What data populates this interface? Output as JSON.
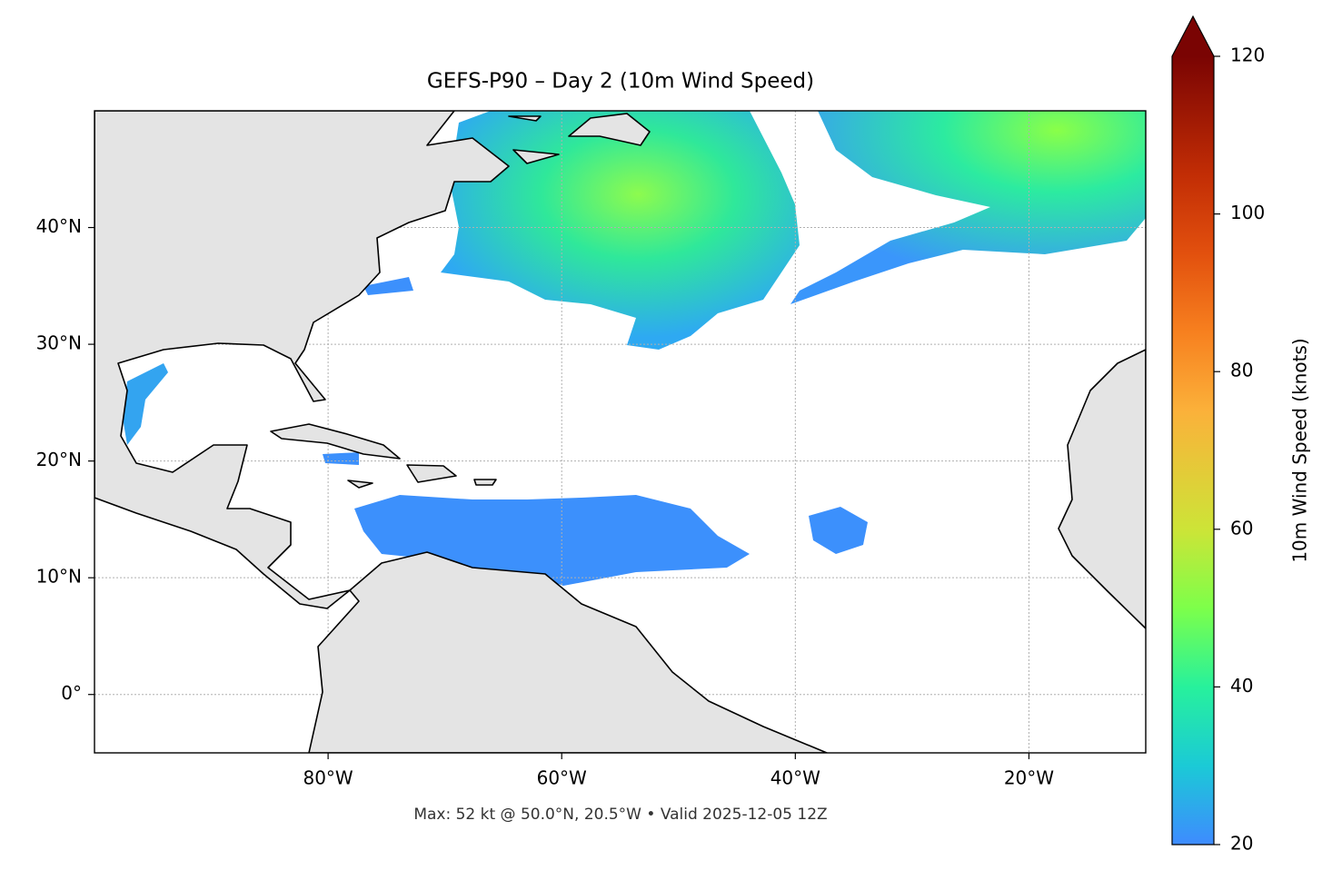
{
  "title": "GEFS-P90 – Day 2 (10m Wind Speed)",
  "footer": "Max: 52 kt @ 50.0°N, 20.5°W • Valid 2025-12-05 12Z",
  "map": {
    "xlim": [
      -100,
      -10
    ],
    "ylim": [
      -5,
      50
    ],
    "grid": true,
    "xticks": [
      {
        "value": -80,
        "label": "80°W"
      },
      {
        "value": -60,
        "label": "60°W"
      },
      {
        "value": -40,
        "label": "40°W"
      },
      {
        "value": -20,
        "label": "20°W"
      }
    ],
    "yticks": [
      {
        "value": 0,
        "label": "0°"
      },
      {
        "value": 10,
        "label": "10°N"
      },
      {
        "value": 20,
        "label": "20°N"
      },
      {
        "value": 30,
        "label": "30°N"
      },
      {
        "value": 40,
        "label": "40°N"
      }
    ]
  },
  "colorbar": {
    "label": "10m Wind Speed (knots)",
    "lim": [
      20,
      120
    ],
    "ticks": [
      20,
      40,
      60,
      80,
      100,
      120
    ]
  }
}
